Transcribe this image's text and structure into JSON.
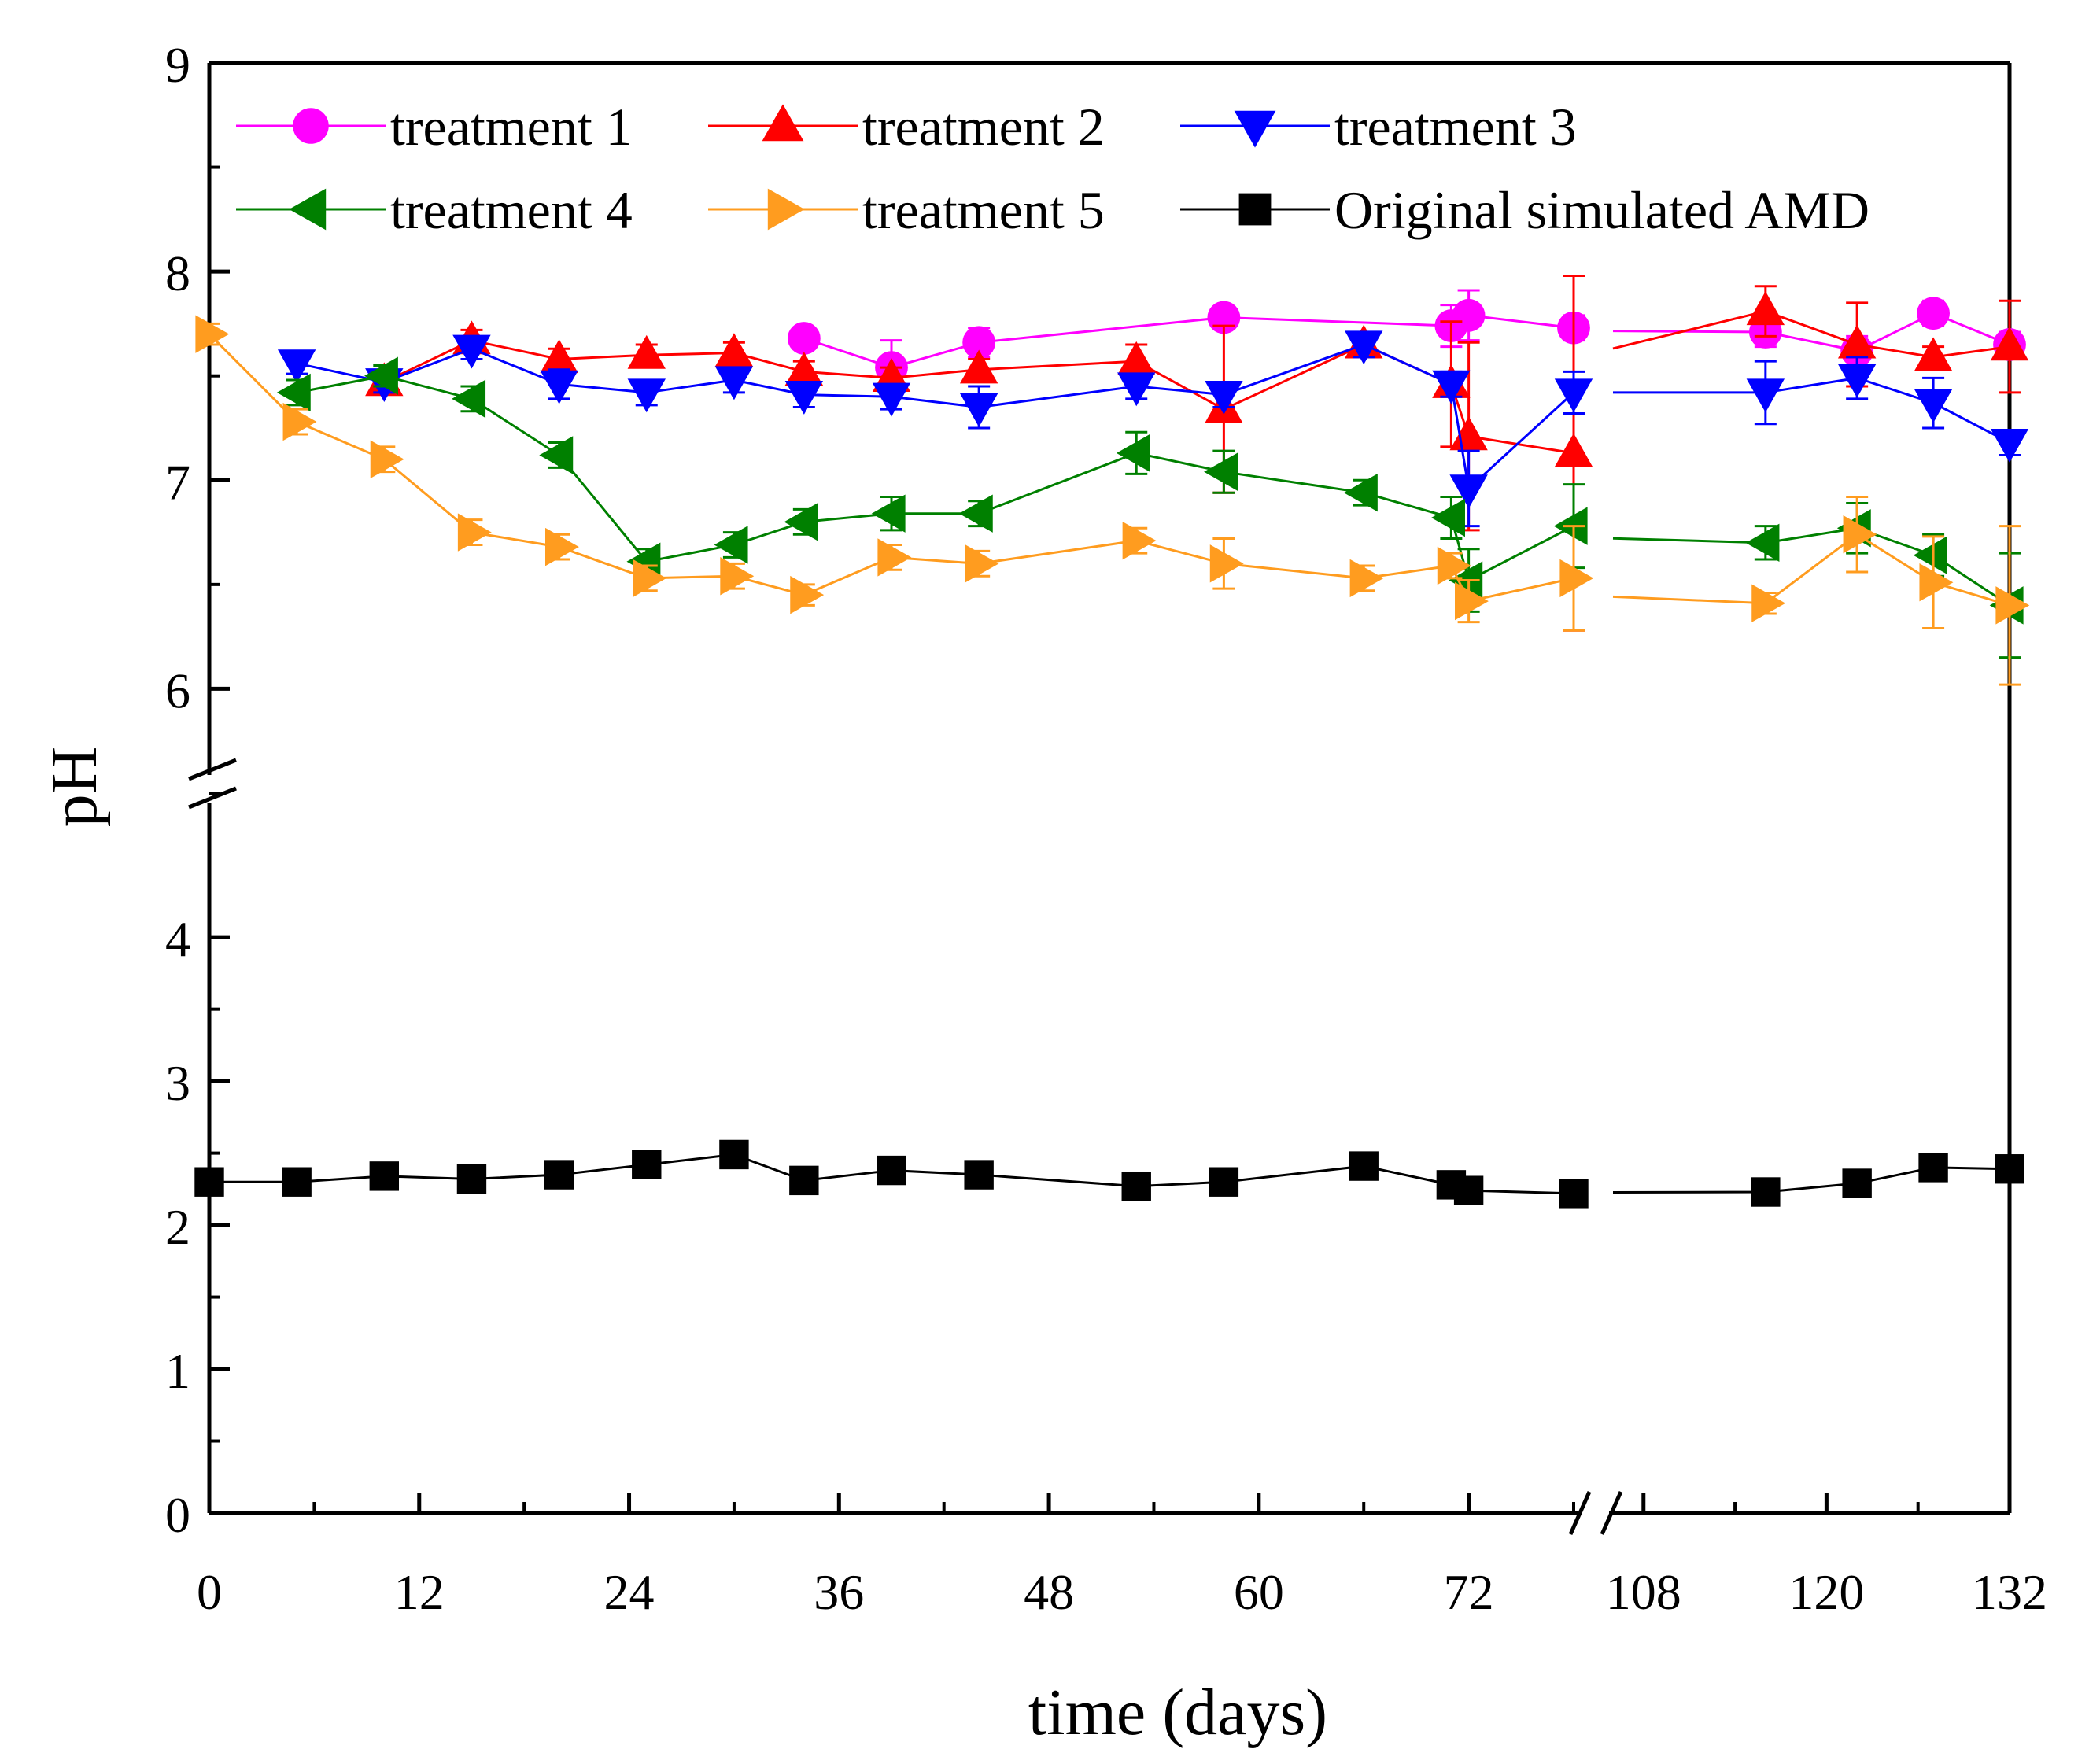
{
  "chart_data": {
    "type": "line",
    "title": "",
    "xlabel": "time (days)",
    "ylabel": "pH",
    "x_segments": [
      {
        "range": [
          0,
          78
        ],
        "ticks": [
          0,
          12,
          24,
          36,
          48,
          60,
          72
        ]
      },
      {
        "range": [
          106,
          132
        ],
        "ticks": [
          108,
          120,
          132
        ]
      }
    ],
    "x_ticklabels": [
      "0",
      "12",
      "24",
      "36",
      "48",
      "60",
      "72",
      "108",
      "120",
      "132"
    ],
    "y_segments": [
      {
        "range": [
          0,
          4.4
        ],
        "ticks": [
          0,
          1,
          2,
          3,
          4
        ]
      },
      {
        "range": [
          5.5,
          9
        ],
        "ticks": [
          6,
          7,
          8,
          9
        ]
      }
    ],
    "y_ticklabels": [
      "0",
      "1",
      "2",
      "3",
      "4",
      "6",
      "7",
      "8",
      "9"
    ],
    "axis_breaks": [
      "x between 78 and 106",
      "y between 4.4 and 5.5"
    ],
    "grid": false,
    "legend": {
      "position": "top",
      "columns": 3
    },
    "series": [
      {
        "name": "treatment 1",
        "color": "#ff00ff",
        "marker": "circle",
        "x": [
          34,
          39,
          44,
          58,
          71,
          72,
          78,
          116,
          122,
          127,
          132
        ],
        "y": [
          7.68,
          7.54,
          7.66,
          7.78,
          7.74,
          7.79,
          7.73,
          7.71,
          7.62,
          7.8,
          7.65
        ],
        "err": [
          0.05,
          0.13,
          0.07,
          0.05,
          0.1,
          0.12,
          0.06,
          0.07,
          0.07,
          0.06,
          0.06
        ]
      },
      {
        "name": "treatment 2",
        "color": "#ff0000",
        "marker": "triangle-up",
        "x": [
          10,
          15,
          20,
          25,
          30,
          34,
          39,
          44,
          53,
          58,
          66,
          71,
          72,
          78,
          116,
          122,
          127,
          132
        ],
        "y": [
          7.47,
          7.67,
          7.58,
          7.6,
          7.61,
          7.52,
          7.49,
          7.53,
          7.57,
          7.34,
          7.65,
          7.46,
          7.21,
          7.13,
          7.81,
          7.65,
          7.59,
          7.64
        ],
        "err": [
          0.05,
          0.05,
          0.05,
          0.05,
          0.05,
          0.05,
          0.05,
          0.05,
          0.08,
          0.4,
          0.05,
          0.3,
          0.45,
          0.85,
          0.12,
          0.2,
          0.05,
          0.22
        ]
      },
      {
        "name": "treatment 3",
        "color": "#0000ff",
        "marker": "triangle-down",
        "x": [
          5,
          10,
          15,
          20,
          25,
          30,
          34,
          39,
          44,
          53,
          58,
          66,
          71,
          72,
          78,
          116,
          122,
          127,
          132
        ],
        "y": [
          7.56,
          7.47,
          7.63,
          7.46,
          7.42,
          7.48,
          7.41,
          7.4,
          7.35,
          7.45,
          7.41,
          7.65,
          7.46,
          6.96,
          7.42,
          7.42,
          7.49,
          7.37,
          7.18
        ],
        "err": [
          0.05,
          0.05,
          0.05,
          0.07,
          0.06,
          0.06,
          0.06,
          0.06,
          0.1,
          0.06,
          0.06,
          0.06,
          0.06,
          0.18,
          0.1,
          0.15,
          0.1,
          0.12,
          0.06
        ]
      },
      {
        "name": "treatment 4",
        "color": "#008000",
        "marker": "triangle-left",
        "x": [
          5,
          10,
          15,
          20,
          25,
          30,
          34,
          39,
          44,
          53,
          58,
          66,
          71,
          72,
          78,
          116,
          122,
          127,
          132
        ],
        "y": [
          7.42,
          7.5,
          7.39,
          7.12,
          6.61,
          6.69,
          6.8,
          6.84,
          6.84,
          7.13,
          7.04,
          6.94,
          6.82,
          6.52,
          6.78,
          6.7,
          6.77,
          6.64,
          6.4
        ],
        "err": [
          0.06,
          0.05,
          0.06,
          0.06,
          0.06,
          0.06,
          0.06,
          0.08,
          0.06,
          0.1,
          0.1,
          0.06,
          0.1,
          0.15,
          0.2,
          0.08,
          0.12,
          0.1,
          0.25
        ]
      },
      {
        "name": "treatment 5",
        "color": "#ff9c1f",
        "marker": "triangle-right",
        "x": [
          0,
          5,
          10,
          15,
          20,
          25,
          30,
          34,
          39,
          44,
          53,
          58,
          66,
          71,
          72,
          78,
          116,
          122,
          127,
          132
        ],
        "y": [
          7.7,
          7.28,
          7.1,
          6.75,
          6.68,
          6.53,
          6.54,
          6.45,
          6.63,
          6.6,
          6.71,
          6.6,
          6.53,
          6.59,
          6.42,
          6.53,
          6.41,
          6.74,
          6.51,
          6.4
        ],
        "err": [
          0.05,
          0.06,
          0.06,
          0.06,
          0.06,
          0.06,
          0.06,
          0.05,
          0.06,
          0.06,
          0.06,
          0.12,
          0.06,
          0.06,
          0.1,
          0.25,
          0.05,
          0.18,
          0.22,
          0.38
        ]
      },
      {
        "name": "Original simulated AMD",
        "color": "#000000",
        "marker": "square",
        "x": [
          0,
          5,
          10,
          15,
          20,
          25,
          30,
          34,
          39,
          44,
          53,
          58,
          66,
          71,
          72,
          78,
          116,
          122,
          127,
          132
        ],
        "y": [
          2.3,
          2.3,
          2.34,
          2.32,
          2.35,
          2.42,
          2.49,
          2.31,
          2.38,
          2.35,
          2.27,
          2.3,
          2.41,
          2.28,
          2.24,
          2.22,
          2.23,
          2.29,
          2.4,
          2.39
        ],
        "err": []
      }
    ]
  }
}
